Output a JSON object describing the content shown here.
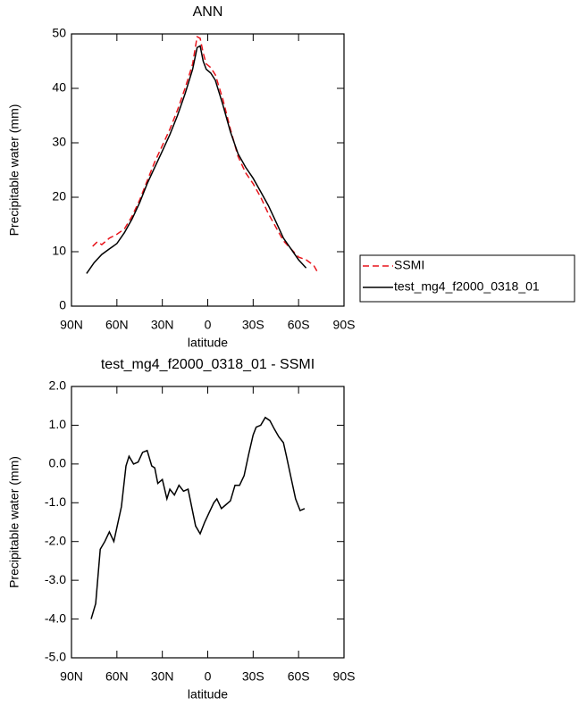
{
  "chart_data": [
    {
      "type": "line",
      "title": "ANN",
      "xlabel": "latitude",
      "ylabel": "Precipitable water (mm)",
      "xlim": [
        90,
        -90
      ],
      "xticks": [
        {
          "value": 90,
          "label": "90N"
        },
        {
          "value": 60,
          "label": "60N"
        },
        {
          "value": 30,
          "label": "30N"
        },
        0,
        {
          "value": -30,
          "label": "30S"
        },
        {
          "value": -60,
          "label": "60S"
        },
        {
          "value": -90,
          "label": "90S"
        }
      ],
      "ylim": [
        0,
        50
      ],
      "yticks": [
        0,
        10,
        20,
        30,
        40,
        50
      ],
      "legend": "right",
      "series": [
        {
          "name": "SSMI",
          "color": "#e8141b",
          "dash": true,
          "x": [
            76,
            73,
            70,
            65,
            60,
            55,
            50,
            45,
            40,
            35,
            30,
            25,
            20,
            15,
            10,
            7,
            5,
            3,
            1,
            -2,
            -5,
            -10,
            -15,
            -20,
            -25,
            -30,
            -35,
            -40,
            -45,
            -50,
            -55,
            -60,
            -65,
            -70,
            -73
          ],
          "values": [
            11,
            11.8,
            11.3,
            12.5,
            13.2,
            14.2,
            16.5,
            19.5,
            23,
            26.5,
            29.5,
            32.5,
            36,
            40,
            44.5,
            49.5,
            49.2,
            46.5,
            44.5,
            43.8,
            42.5,
            38,
            32.5,
            27.5,
            24.5,
            22.5,
            20,
            17,
            14.5,
            12,
            10.5,
            9,
            8.5,
            7.5,
            6
          ]
        },
        {
          "name": "test_mg4_f2000_0318_01",
          "color": "#000000",
          "dash": false,
          "x": [
            80,
            75,
            70,
            65,
            60,
            55,
            50,
            45,
            40,
            35,
            30,
            25,
            20,
            15,
            10,
            7,
            5,
            3,
            1,
            -2,
            -5,
            -10,
            -15,
            -20,
            -25,
            -30,
            -35,
            -40,
            -45,
            -50,
            -55,
            -60,
            -65
          ],
          "values": [
            6,
            8,
            9.5,
            10.5,
            11.5,
            13.5,
            16,
            19,
            22.5,
            25.5,
            28.5,
            31.5,
            35,
            39,
            43.5,
            47.5,
            47.8,
            45,
            43.5,
            42.8,
            41.5,
            37,
            32,
            28,
            25.5,
            23.5,
            21,
            18.5,
            15.5,
            12.5,
            10.5,
            8.5,
            7
          ]
        }
      ]
    },
    {
      "type": "line",
      "title": "test_mg4_f2000_0318_01 - SSMI",
      "xlabel": "latitude",
      "ylabel": "Precipitable water (mm)",
      "xlim": [
        90,
        -90
      ],
      "xticks": [
        {
          "value": 90,
          "label": "90N"
        },
        {
          "value": 60,
          "label": "60N"
        },
        {
          "value": 30,
          "label": "30N"
        },
        0,
        {
          "value": -30,
          "label": "30S"
        },
        {
          "value": -60,
          "label": "60S"
        },
        {
          "value": -90,
          "label": "90S"
        }
      ],
      "ylim": [
        -5,
        2
      ],
      "yticks": [
        {
          "value": -5,
          "label": "-5.0"
        },
        {
          "value": -4,
          "label": "-4.0"
        },
        {
          "value": -3,
          "label": "-3.0"
        },
        {
          "value": -2,
          "label": "-2.0"
        },
        {
          "value": -1,
          "label": "-1.0"
        },
        {
          "value": 0,
          "label": "0.0"
        },
        {
          "value": 1,
          "label": "1.0"
        },
        {
          "value": 2,
          "label": "2.0"
        }
      ],
      "series": [
        {
          "color": "#000000",
          "dash": false,
          "x": [
            77,
            74,
            71,
            68,
            65,
            62,
            57,
            54,
            52,
            49,
            46,
            43,
            40,
            37,
            35,
            33,
            30,
            27,
            25,
            22,
            19,
            16,
            13,
            8,
            5,
            2,
            -1,
            -4,
            -6,
            -9,
            -12,
            -15,
            -18,
            -21,
            -24,
            -27,
            -30,
            -32,
            -35,
            -38,
            -41,
            -44,
            -47,
            -50,
            -52,
            -55,
            -58,
            -61,
            -64
          ],
          "values": [
            -4.0,
            -3.6,
            -2.2,
            -2.0,
            -1.75,
            -2.0,
            -1.1,
            -0.05,
            0.2,
            0.0,
            0.05,
            0.3,
            0.35,
            -0.05,
            -0.1,
            -0.5,
            -0.4,
            -0.9,
            -0.65,
            -0.8,
            -0.55,
            -0.7,
            -0.65,
            -1.6,
            -1.8,
            -1.5,
            -1.25,
            -1.0,
            -0.9,
            -1.15,
            -1.05,
            -0.95,
            -0.55,
            -0.55,
            -0.3,
            0.25,
            0.75,
            0.95,
            1.0,
            1.2,
            1.12,
            0.9,
            0.7,
            0.55,
            0.2,
            -0.35,
            -0.9,
            -1.2,
            -1.15
          ]
        }
      ]
    }
  ]
}
